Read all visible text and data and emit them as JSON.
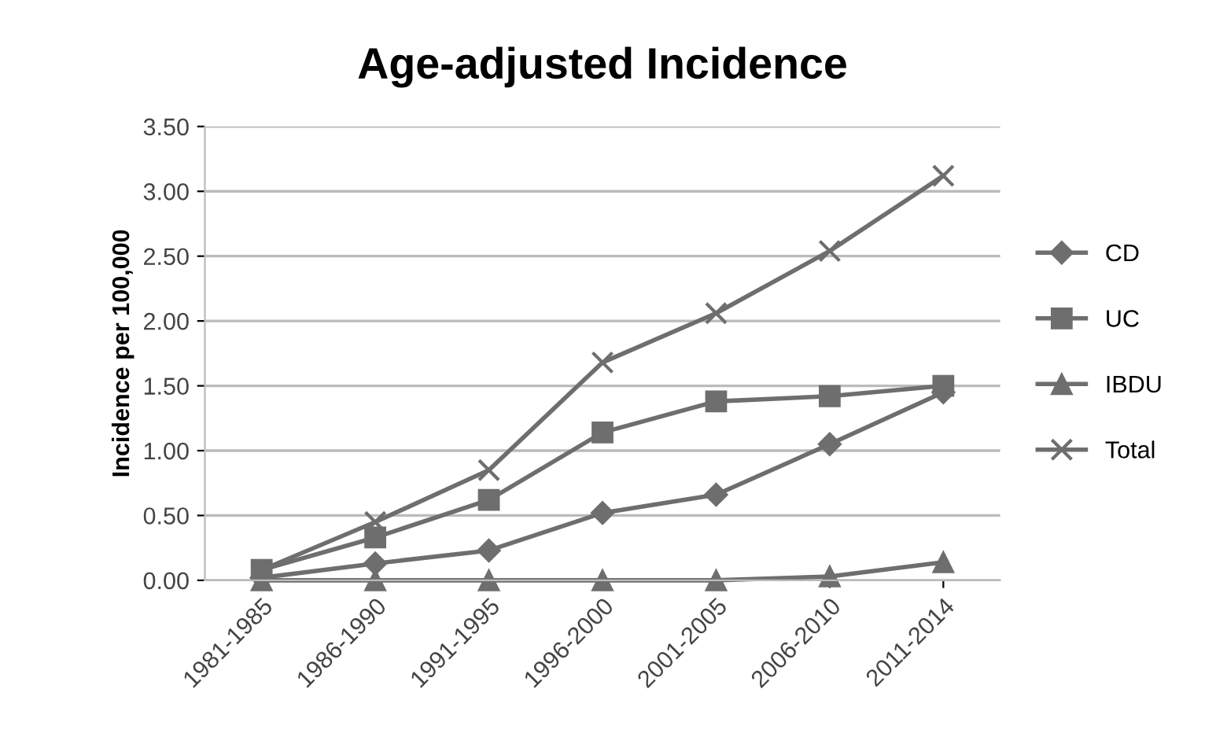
{
  "chart_data": {
    "type": "line",
    "title": "Age-adjusted Incidence",
    "ylabel": "Incidence per 100,000",
    "categories": [
      "1981-1985",
      "1986-1990",
      "1991-1995",
      "1996-2000",
      "2001-2005",
      "2006-2010",
      "2011-2014"
    ],
    "series": [
      {
        "name": "CD",
        "color": "#6e6e6e",
        "marker": "diamond",
        "values": [
          0.02,
          0.13,
          0.23,
          0.52,
          0.66,
          1.05,
          1.45
        ]
      },
      {
        "name": "UC",
        "color": "#6e6e6e",
        "marker": "square",
        "values": [
          0.08,
          0.33,
          0.62,
          1.14,
          1.38,
          1.42,
          1.5
        ]
      },
      {
        "name": "IBDU",
        "color": "#6e6e6e",
        "marker": "triangle",
        "values": [
          0.0,
          0.0,
          0.0,
          0.0,
          0.0,
          0.03,
          0.14
        ]
      },
      {
        "name": "Total",
        "color": "#6e6e6e",
        "marker": "cross",
        "values": [
          0.08,
          0.45,
          0.85,
          1.68,
          2.06,
          2.54,
          3.12
        ]
      }
    ],
    "ylim": [
      0,
      3.5
    ],
    "yticks": [
      {
        "value": 0,
        "label": "0.00"
      },
      {
        "value": 0.5,
        "label": "0.50"
      },
      {
        "value": 1,
        "label": "1.00"
      },
      {
        "value": 1.5,
        "label": "1.50"
      },
      {
        "value": 2,
        "label": "2.00"
      },
      {
        "value": 2.5,
        "label": "2.50"
      },
      {
        "value": 3,
        "label": "3.00"
      },
      {
        "value": 3.5,
        "label": "3.50"
      }
    ],
    "grid": "y",
    "legend": "right",
    "line_style": "solid"
  }
}
